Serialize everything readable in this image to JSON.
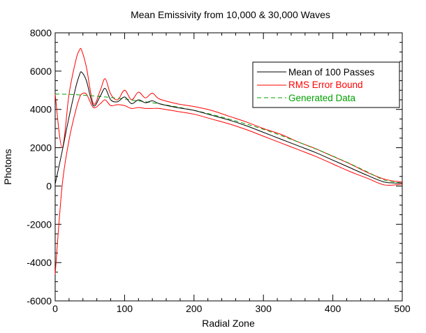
{
  "chart_data": {
    "type": "line",
    "title": "Mean Emissivity from 10,000 & 30,000 Waves",
    "xlabel": "Radial Zone",
    "ylabel": "Photons",
    "xlim": [
      0,
      500
    ],
    "ylim": [
      -6000,
      8000
    ],
    "x_ticks": [
      0,
      100,
      200,
      300,
      400,
      500
    ],
    "x_tick_labels": [
      "0",
      "100",
      "200",
      "300",
      "400",
      "500"
    ],
    "y_ticks": [
      -6000,
      -4000,
      -2000,
      0,
      2000,
      4000,
      6000,
      8000
    ],
    "y_tick_labels": [
      "-6000",
      "-4000",
      "-2000",
      "0",
      "2000",
      "4000",
      "6000",
      "8000"
    ],
    "grid": false,
    "legend_position": "top-right",
    "series": [
      {
        "name": "Mean of 100 Passes",
        "color": "#000000",
        "style": "solid",
        "x": [
          0,
          10,
          20,
          30,
          35,
          38,
          45,
          55,
          65,
          72,
          80,
          90,
          100,
          110,
          120,
          130,
          140,
          150,
          175,
          200,
          225,
          250,
          275,
          300,
          325,
          350,
          375,
          400,
          425,
          450,
          475,
          500
        ],
        "y": [
          100,
          1800,
          3600,
          5200,
          5800,
          5950,
          5500,
          4200,
          4700,
          5100,
          4500,
          4400,
          4650,
          4300,
          4500,
          4350,
          4450,
          4300,
          4100,
          3950,
          3700,
          3450,
          3150,
          2800,
          2450,
          2100,
          1750,
          1350,
          950,
          550,
          200,
          150
        ]
      },
      {
        "name": "RMS Error Bound",
        "color": "#ff0000",
        "style": "solid",
        "note_upper": true,
        "x": [
          0,
          10,
          20,
          30,
          35,
          38,
          45,
          55,
          65,
          72,
          80,
          90,
          100,
          110,
          120,
          130,
          140,
          150,
          175,
          200,
          225,
          250,
          275,
          300,
          325,
          350,
          375,
          400,
          425,
          450,
          475,
          500
        ],
        "y_upper": [
          4800,
          2000,
          4800,
          6600,
          7100,
          7100,
          6200,
          4300,
          5000,
          5600,
          4800,
          4500,
          5000,
          4500,
          4900,
          4600,
          4850,
          4550,
          4300,
          4150,
          3950,
          3650,
          3350,
          3000,
          2700,
          2300,
          1950,
          1550,
          1150,
          700,
          350,
          200
        ],
        "y_lower": [
          -4600,
          0,
          2400,
          4000,
          4600,
          4800,
          4800,
          4100,
          4300,
          4500,
          4200,
          4250,
          4200,
          4050,
          4100,
          4050,
          4050,
          4050,
          3900,
          3750,
          3500,
          3250,
          2950,
          2600,
          2250,
          1900,
          1550,
          1150,
          750,
          400,
          50,
          100
        ]
      },
      {
        "name": "Generated Data",
        "color": "#00a000",
        "style": "dashed",
        "x": [
          0,
          25,
          50,
          75,
          100,
          125,
          150,
          175,
          200,
          225,
          250,
          275,
          300,
          325,
          350,
          375,
          400,
          425,
          450,
          475,
          500
        ],
        "y": [
          4800,
          4780,
          4720,
          4640,
          4540,
          4420,
          4290,
          4130,
          3950,
          3740,
          3500,
          3240,
          2960,
          2640,
          2300,
          1940,
          1560,
          1160,
          730,
          300,
          150
        ]
      }
    ]
  }
}
